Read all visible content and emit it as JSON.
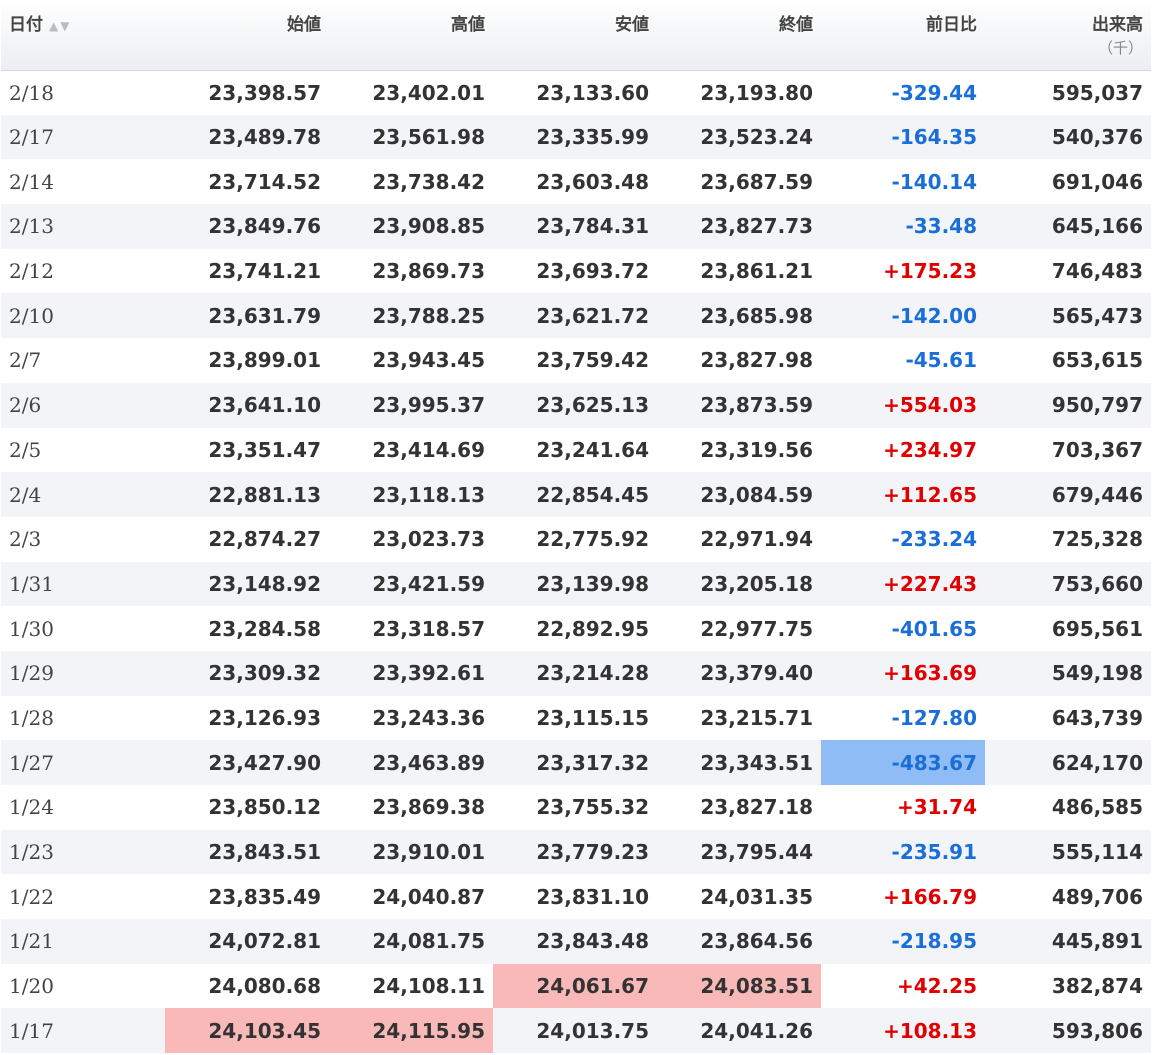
{
  "headers": {
    "date": "日付",
    "open": "始値",
    "high": "高値",
    "low": "安値",
    "close": "終値",
    "change": "前日比",
    "volume": "出来高",
    "volume_unit": "（千）"
  },
  "sort_icons": {
    "asc": "▲",
    "desc": "▼"
  },
  "colors": {
    "up": "#e00000",
    "down": "#1a6ed8",
    "highlight_red": "#f9b9b9",
    "highlight_blue": "#8fbcf5"
  },
  "rows": [
    {
      "date": "2/18",
      "open": "23,398.57",
      "high": "23,402.01",
      "low": "23,133.60",
      "close": "23,193.80",
      "change": "-329.44",
      "volume": "595,037",
      "highlights": []
    },
    {
      "date": "2/17",
      "open": "23,489.78",
      "high": "23,561.98",
      "low": "23,335.99",
      "close": "23,523.24",
      "change": "-164.35",
      "volume": "540,376",
      "highlights": []
    },
    {
      "date": "2/14",
      "open": "23,714.52",
      "high": "23,738.42",
      "low": "23,603.48",
      "close": "23,687.59",
      "change": "-140.14",
      "volume": "691,046",
      "highlights": []
    },
    {
      "date": "2/13",
      "open": "23,849.76",
      "high": "23,908.85",
      "low": "23,784.31",
      "close": "23,827.73",
      "change": "-33.48",
      "volume": "645,166",
      "highlights": []
    },
    {
      "date": "2/12",
      "open": "23,741.21",
      "high": "23,869.73",
      "low": "23,693.72",
      "close": "23,861.21",
      "change": "+175.23",
      "volume": "746,483",
      "highlights": []
    },
    {
      "date": "2/10",
      "open": "23,631.79",
      "high": "23,788.25",
      "low": "23,621.72",
      "close": "23,685.98",
      "change": "-142.00",
      "volume": "565,473",
      "highlights": []
    },
    {
      "date": "2/7",
      "open": "23,899.01",
      "high": "23,943.45",
      "low": "23,759.42",
      "close": "23,827.98",
      "change": "-45.61",
      "volume": "653,615",
      "highlights": []
    },
    {
      "date": "2/6",
      "open": "23,641.10",
      "high": "23,995.37",
      "low": "23,625.13",
      "close": "23,873.59",
      "change": "+554.03",
      "volume": "950,797",
      "highlights": []
    },
    {
      "date": "2/5",
      "open": "23,351.47",
      "high": "23,414.69",
      "low": "23,241.64",
      "close": "23,319.56",
      "change": "+234.97",
      "volume": "703,367",
      "highlights": []
    },
    {
      "date": "2/4",
      "open": "22,881.13",
      "high": "23,118.13",
      "low": "22,854.45",
      "close": "23,084.59",
      "change": "+112.65",
      "volume": "679,446",
      "highlights": []
    },
    {
      "date": "2/3",
      "open": "22,874.27",
      "high": "23,023.73",
      "low": "22,775.92",
      "close": "22,971.94",
      "change": "-233.24",
      "volume": "725,328",
      "highlights": []
    },
    {
      "date": "1/31",
      "open": "23,148.92",
      "high": "23,421.59",
      "low": "23,139.98",
      "close": "23,205.18",
      "change": "+227.43",
      "volume": "753,660",
      "highlights": []
    },
    {
      "date": "1/30",
      "open": "23,284.58",
      "high": "23,318.57",
      "low": "22,892.95",
      "close": "22,977.75",
      "change": "-401.65",
      "volume": "695,561",
      "highlights": []
    },
    {
      "date": "1/29",
      "open": "23,309.32",
      "high": "23,392.61",
      "low": "23,214.28",
      "close": "23,379.40",
      "change": "+163.69",
      "volume": "549,198",
      "highlights": []
    },
    {
      "date": "1/28",
      "open": "23,126.93",
      "high": "23,243.36",
      "low": "23,115.15",
      "close": "23,215.71",
      "change": "-127.80",
      "volume": "643,739",
      "highlights": []
    },
    {
      "date": "1/27",
      "open": "23,427.90",
      "high": "23,463.89",
      "low": "23,317.32",
      "close": "23,343.51",
      "change": "-483.67",
      "volume": "624,170",
      "highlights": [
        "change"
      ]
    },
    {
      "date": "1/24",
      "open": "23,850.12",
      "high": "23,869.38",
      "low": "23,755.32",
      "close": "23,827.18",
      "change": "+31.74",
      "volume": "486,585",
      "highlights": []
    },
    {
      "date": "1/23",
      "open": "23,843.51",
      "high": "23,910.01",
      "low": "23,779.23",
      "close": "23,795.44",
      "change": "-235.91",
      "volume": "555,114",
      "highlights": []
    },
    {
      "date": "1/22",
      "open": "23,835.49",
      "high": "24,040.87",
      "low": "23,831.10",
      "close": "24,031.35",
      "change": "+166.79",
      "volume": "489,706",
      "highlights": []
    },
    {
      "date": "1/21",
      "open": "24,072.81",
      "high": "24,081.75",
      "low": "23,843.48",
      "close": "23,864.56",
      "change": "-218.95",
      "volume": "445,891",
      "highlights": []
    },
    {
      "date": "1/20",
      "open": "24,080.68",
      "high": "24,108.11",
      "low": "24,061.67",
      "close": "24,083.51",
      "change": "+42.25",
      "volume": "382,874",
      "highlights": [
        "low",
        "close"
      ]
    },
    {
      "date": "1/17",
      "open": "24,103.45",
      "high": "24,115.95",
      "low": "24,013.75",
      "close": "24,041.26",
      "change": "+108.13",
      "volume": "593,806",
      "highlights": [
        "open",
        "high"
      ]
    }
  ]
}
